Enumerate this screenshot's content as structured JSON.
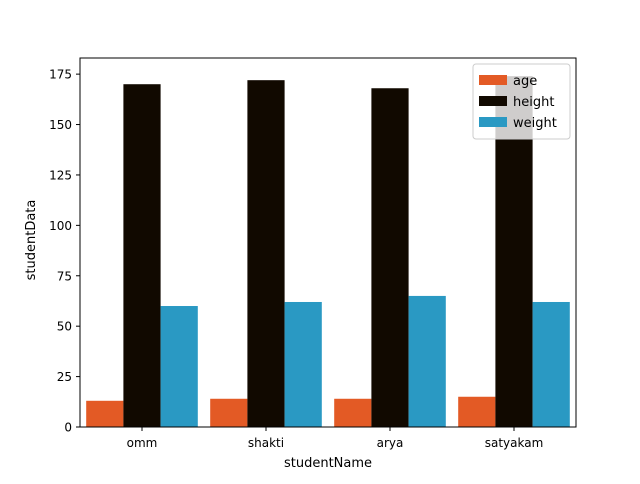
{
  "chart_data": {
    "type": "bar",
    "title": "",
    "xlabel": "studentName",
    "ylabel": "studentData",
    "categories": [
      "omm",
      "shakti",
      "arya",
      "satyakam"
    ],
    "series": [
      {
        "name": "age",
        "values": [
          13,
          14,
          14,
          15
        ],
        "color": "#e35a25"
      },
      {
        "name": "height",
        "values": [
          170,
          172,
          168,
          174
        ],
        "color": "#110900"
      },
      {
        "name": "weight",
        "values": [
          60,
          62,
          65,
          62
        ],
        "color": "#2a99c3"
      }
    ],
    "ylim": [
      0,
      183
    ],
    "yticks": [
      0,
      25,
      50,
      75,
      100,
      125,
      150,
      175
    ],
    "grid": false,
    "legend_position": "top-right"
  }
}
